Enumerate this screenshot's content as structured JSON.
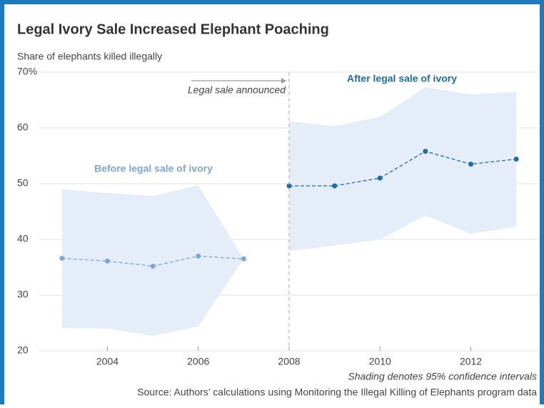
{
  "chart_data": {
    "type": "line",
    "title": "Legal Ivory Sale Increased Elephant Poaching",
    "y_label": "Share of elephants killed illegally",
    "note": "Shading denotes 95% confidence intervals",
    "source": "Source: Authors’ calculations using Monitoring the Illegal Killing of Elephants program data",
    "event": {
      "x": 2008,
      "label": "Legal sale announced"
    },
    "xlim": [
      2002.5,
      2013.5
    ],
    "xticks": [
      2004,
      2006,
      2008,
      2010,
      2012
    ],
    "ylim": [
      20,
      70
    ],
    "yticks": [
      20,
      30,
      40,
      50,
      60,
      {
        "value": 70,
        "label": "70%"
      }
    ],
    "grid": true,
    "series": [
      {
        "name": "Before legal sale of ivory",
        "color": "#7ba7dc",
        "band_color": "#e4edf8",
        "x": [
          2003,
          2004,
          2005,
          2006,
          2007
        ],
        "values": [
          36.6,
          36.1,
          35.2,
          37.0,
          36.5
        ],
        "upper": [
          49.0,
          48.3,
          47.8,
          49.7,
          36.5
        ],
        "lower": [
          24.1,
          24.0,
          22.7,
          24.4,
          36.5
        ]
      },
      {
        "name": "After legal sale of ivory",
        "color": "#1a6db3",
        "band_color": "#e4edf8",
        "x": [
          2008,
          2009,
          2010,
          2011,
          2012,
          2013
        ],
        "values": [
          49.6,
          49.6,
          51.0,
          55.8,
          53.5,
          54.4
        ],
        "upper": [
          61.2,
          60.3,
          62.0,
          67.3,
          66.0,
          66.5
        ],
        "lower": [
          37.9,
          38.9,
          40.0,
          44.3,
          41.0,
          42.3
        ]
      }
    ]
  }
}
